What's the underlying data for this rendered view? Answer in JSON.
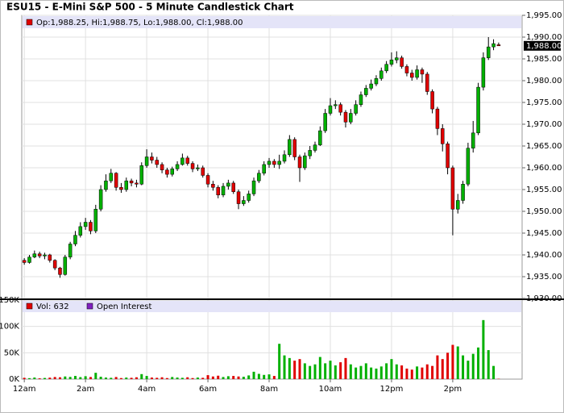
{
  "chart_data": [
    {
      "type": "candlestick",
      "title": "ESU15 - E-Mini S&P 500 - 5 Minute Candlestick Chart",
      "legend_text": "Op:1,988.25, Hi:1,988.75, Lo:1,988.00, Cl:1,988.00",
      "legend_color": "#e00000",
      "up_color": "#00b000",
      "down_color": "#e00000",
      "x": [
        0,
        10,
        20,
        30,
        40,
        50,
        60,
        70,
        80,
        90,
        100,
        110,
        120,
        130,
        140,
        150,
        160,
        170,
        180,
        190,
        200,
        210,
        220,
        230,
        240,
        250,
        260,
        270,
        280,
        290,
        300,
        310,
        320,
        330,
        340,
        350,
        360,
        370,
        380,
        390,
        400,
        410,
        420,
        430,
        440,
        450,
        460,
        470,
        480,
        490,
        500,
        510,
        520,
        530,
        540,
        550,
        560,
        570,
        580,
        590,
        600,
        610,
        620,
        630,
        640,
        650,
        660,
        670,
        680,
        690,
        700,
        710,
        720,
        730,
        740,
        750,
        760,
        770,
        780,
        790,
        800,
        810,
        820,
        830,
        840,
        850,
        860,
        870,
        880,
        890,
        900,
        910,
        920,
        930
      ],
      "open": [
        1938.75,
        1938.25,
        1939.5,
        1940.25,
        1939.75,
        1940,
        1938.75,
        1937,
        1935.5,
        1939.5,
        1942.5,
        1944.5,
        1946.5,
        1947.5,
        1945.5,
        1950.5,
        1955,
        1957,
        1958.75,
        1955.5,
        1955,
        1957,
        1956.5,
        1956.25,
        1960.5,
        1962.5,
        1961.75,
        1960.75,
        1959.5,
        1958.5,
        1959.75,
        1960.75,
        1962.25,
        1961,
        1959.75,
        1960,
        1958.25,
        1956.25,
        1955.5,
        1953.75,
        1955.75,
        1956.5,
        1954.5,
        1951.75,
        1952.5,
        1954,
        1957,
        1958.75,
        1960.75,
        1961.5,
        1960.75,
        1961.5,
        1963,
        1966.5,
        1962.5,
        1960,
        1962.75,
        1964,
        1965.25,
        1968.5,
        1972.5,
        1974.25,
        1974.5,
        1972.75,
        1970.5,
        1972.5,
        1974.5,
        1976.75,
        1978.25,
        1979.25,
        1980.5,
        1982.25,
        1983.75,
        1984.75,
        1985.25,
        1983.25,
        1981.75,
        1980.75,
        1982.5,
        1981.5,
        1977.5,
        1973.5,
        1969,
        1965.5,
        1960,
        1950.5,
        1952.5,
        1956.25,
        1964.5,
        1968,
        1978.5,
        1985.25,
        1987.75,
        1988.25
      ],
      "high": [
        1939.25,
        1940,
        1941,
        1940.75,
        1940.5,
        1940.25,
        1939,
        1937.25,
        1940,
        1943,
        1945.5,
        1947.5,
        1948.5,
        1948,
        1951.5,
        1956,
        1958.5,
        1959.75,
        1959,
        1956.5,
        1957.75,
        1957.5,
        1957.25,
        1961.25,
        1964.25,
        1963.5,
        1962.5,
        1961.25,
        1960,
        1960.25,
        1961.5,
        1963.25,
        1962.75,
        1961.5,
        1960.75,
        1960.5,
        1958.75,
        1957,
        1956,
        1956.5,
        1957.25,
        1957,
        1955,
        1953.5,
        1954.75,
        1957.75,
        1959.5,
        1961.5,
        1962.25,
        1962,
        1963,
        1964,
        1967.5,
        1967,
        1963,
        1963.5,
        1965,
        1966,
        1969.5,
        1973.5,
        1976,
        1975.5,
        1975,
        1973.25,
        1973.5,
        1975.5,
        1977.5,
        1979,
        1980.25,
        1981.25,
        1983,
        1984.5,
        1986.5,
        1986.75,
        1985.75,
        1983.75,
        1982.5,
        1983.5,
        1983,
        1982,
        1978,
        1974,
        1970,
        1966,
        1960.5,
        1954,
        1957,
        1965.75,
        1970.75,
        1979.5,
        1986.5,
        1990,
        1989.5,
        1988.75
      ],
      "low": [
        1937.75,
        1938,
        1939.25,
        1939.25,
        1939,
        1938.25,
        1936.5,
        1934.75,
        1935.25,
        1939,
        1942,
        1944,
        1945.75,
        1944.75,
        1945,
        1950,
        1954.5,
        1956.5,
        1954.75,
        1954.25,
        1954.5,
        1955.75,
        1955.5,
        1956,
        1960,
        1961,
        1960,
        1958.75,
        1957.75,
        1958,
        1959.25,
        1960.5,
        1960.5,
        1959,
        1959.25,
        1957.75,
        1955.5,
        1954.75,
        1953,
        1953.25,
        1955,
        1954,
        1950.5,
        1951.25,
        1952,
        1953.5,
        1956.5,
        1958.25,
        1960,
        1960,
        1959.75,
        1961,
        1962.5,
        1961.75,
        1956.75,
        1959.5,
        1962,
        1963.5,
        1965,
        1968,
        1972,
        1973.5,
        1972,
        1969.25,
        1970,
        1972,
        1974,
        1976.25,
        1977.75,
        1978.75,
        1980,
        1981.75,
        1983.25,
        1984,
        1982.75,
        1981,
        1980,
        1980.25,
        1979.5,
        1976.75,
        1972.5,
        1967.5,
        1963.75,
        1958.5,
        1944.5,
        1949.5,
        1951.75,
        1955.75,
        1963.5,
        1967.5,
        1977.75,
        1984.75,
        1987,
        1988
      ],
      "close": [
        1938.25,
        1939.5,
        1940.25,
        1939.75,
        1940,
        1938.75,
        1937,
        1935.5,
        1939.5,
        1942.5,
        1944.5,
        1946.5,
        1947.5,
        1945.5,
        1950.5,
        1955,
        1957,
        1958.75,
        1955.5,
        1955,
        1957,
        1956.5,
        1956.25,
        1960.5,
        1962.5,
        1961.75,
        1960.75,
        1959.5,
        1958.5,
        1959.75,
        1960.75,
        1962.25,
        1961,
        1959.75,
        1960,
        1958.25,
        1956.25,
        1955.5,
        1953.75,
        1955.75,
        1956.5,
        1954.5,
        1951.75,
        1952.5,
        1954,
        1957,
        1958.75,
        1960.75,
        1961.5,
        1960.75,
        1961.5,
        1963,
        1966.5,
        1962.5,
        1960,
        1962.75,
        1964,
        1965.25,
        1968.5,
        1972.5,
        1974.25,
        1974.5,
        1972.75,
        1970.5,
        1972.5,
        1974.5,
        1976.75,
        1978.25,
        1979.25,
        1980.5,
        1982.25,
        1983.75,
        1984.75,
        1985.25,
        1983.25,
        1981.75,
        1980.75,
        1982.5,
        1981.5,
        1977.5,
        1973.5,
        1969,
        1965.5,
        1960,
        1950.5,
        1952.5,
        1956.25,
        1964.5,
        1968,
        1978.5,
        1985.25,
        1987.75,
        1988.5,
        1988
      ],
      "last_price": {
        "value": 1988,
        "label": "1,988.00"
      },
      "xlim": [
        -5,
        976
      ],
      "ylim": [
        1930,
        1995
      ],
      "yticks": [
        {
          "value": 1930,
          "label": "1,930.00"
        },
        {
          "value": 1935,
          "label": "1,935.00"
        },
        {
          "value": 1940,
          "label": "1,940.00"
        },
        {
          "value": 1945,
          "label": "1,945.00"
        },
        {
          "value": 1950,
          "label": "1,950.00"
        },
        {
          "value": 1955,
          "label": "1,955.00"
        },
        {
          "value": 1960,
          "label": "1,960.00"
        },
        {
          "value": 1965,
          "label": "1,965.00"
        },
        {
          "value": 1970,
          "label": "1,970.00"
        },
        {
          "value": 1975,
          "label": "1,975.00"
        },
        {
          "value": 1980,
          "label": "1,980.00"
        },
        {
          "value": 1985,
          "label": "1,985.00"
        },
        {
          "value": 1990,
          "label": "1,990.00"
        },
        {
          "value": 1995,
          "label": "1,995.00"
        }
      ],
      "grid": true
    },
    {
      "type": "bar",
      "legend": [
        {
          "label": "Vol: 632",
          "color": "#e00000"
        },
        {
          "label": "Open Interest",
          "color": "#8020c0"
        }
      ],
      "x": [
        0,
        10,
        20,
        30,
        40,
        50,
        60,
        70,
        80,
        90,
        100,
        110,
        120,
        130,
        140,
        150,
        160,
        170,
        180,
        190,
        200,
        210,
        220,
        230,
        240,
        250,
        260,
        270,
        280,
        290,
        300,
        310,
        320,
        330,
        340,
        350,
        360,
        370,
        380,
        390,
        400,
        410,
        420,
        430,
        440,
        450,
        460,
        470,
        480,
        490,
        500,
        510,
        520,
        530,
        540,
        550,
        560,
        570,
        580,
        590,
        600,
        610,
        620,
        630,
        640,
        650,
        660,
        670,
        680,
        690,
        700,
        710,
        720,
        730,
        740,
        750,
        760,
        770,
        780,
        790,
        800,
        810,
        820,
        830,
        840,
        850,
        860,
        870,
        880,
        890,
        900,
        910,
        920,
        930
      ],
      "values": [
        2500,
        1800,
        3000,
        1500,
        2200,
        2800,
        4000,
        3500,
        5000,
        4200,
        6000,
        3800,
        5500,
        4000,
        12000,
        4500,
        3000,
        2500,
        4000,
        2000,
        3000,
        2500,
        3500,
        9500,
        6000,
        3000,
        2500,
        3500,
        2000,
        4000,
        3000,
        2500,
        3500,
        2000,
        3000,
        2500,
        7500,
        5000,
        6500,
        4000,
        5500,
        6000,
        5000,
        4500,
        7000,
        14000,
        10000,
        8000,
        9000,
        6000,
        67000,
        45000,
        40000,
        35000,
        38000,
        30000,
        25000,
        28000,
        42000,
        30000,
        35000,
        26000,
        32000,
        40000,
        28000,
        22000,
        25000,
        30000,
        22000,
        20000,
        24000,
        30000,
        38000,
        28000,
        26000,
        20000,
        18000,
        24000,
        22000,
        28000,
        25000,
        45000,
        38000,
        50000,
        65000,
        62000,
        45000,
        35000,
        48000,
        60000,
        112000,
        55000,
        25000,
        632
      ],
      "xlim": [
        -5,
        976
      ],
      "xticks": [
        {
          "value": 0,
          "label": "12am"
        },
        {
          "value": 120,
          "label": "2am"
        },
        {
          "value": 240,
          "label": "4am"
        },
        {
          "value": 360,
          "label": "6am"
        },
        {
          "value": 480,
          "label": "8am"
        },
        {
          "value": 600,
          "label": "10am"
        },
        {
          "value": 720,
          "label": "12pm"
        },
        {
          "value": 840,
          "label": "2pm"
        }
      ],
      "ylim": [
        0,
        150000
      ],
      "yticks": [
        {
          "value": 0,
          "label": "0K"
        },
        {
          "value": 50000,
          "label": "50K"
        },
        {
          "value": 100000,
          "label": "100K"
        },
        {
          "value": 150000,
          "label": "150K"
        }
      ],
      "grid": true
    }
  ]
}
